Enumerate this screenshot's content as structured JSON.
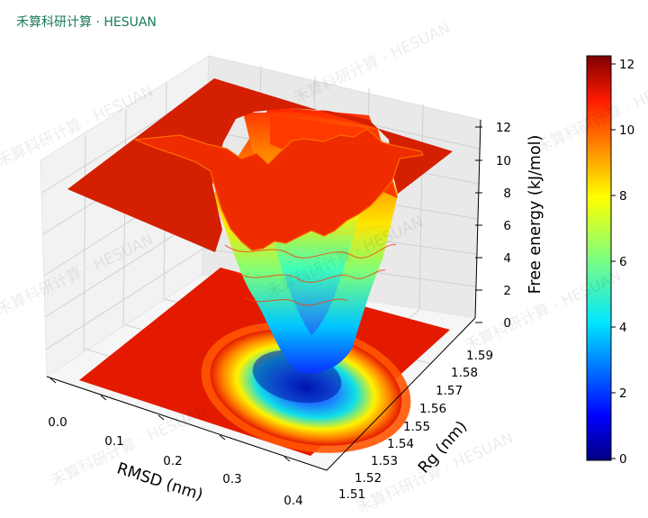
{
  "brand": {
    "text": "禾算科研计算 · HESUAN",
    "color": "#1a7a55"
  },
  "watermark": {
    "text": "禾算科研计算 · HESUAN"
  },
  "chart_data": {
    "type": "surface3d",
    "x": {
      "label": "RMSD (nm)",
      "ticks": [
        "0.0",
        "0.1",
        "0.2",
        "0.3",
        "0.4"
      ],
      "range": [
        0.0,
        0.4
      ]
    },
    "y": {
      "label": "Rg (nm)",
      "ticks": [
        "1.51",
        "1.52",
        "1.53",
        "1.54",
        "1.55",
        "1.56",
        "1.57",
        "1.58",
        "1.59"
      ],
      "range": [
        1.51,
        1.59
      ]
    },
    "z": {
      "label": "Free energy (kJ/mol)",
      "ticks": [
        "0",
        "2",
        "4",
        "6",
        "8",
        "10",
        "12"
      ],
      "range": [
        0,
        12
      ]
    },
    "colorbar": {
      "ticks": [
        "0",
        "2",
        "4",
        "6",
        "8",
        "10",
        "12"
      ],
      "range": [
        0,
        12.3
      ],
      "colormap": "jet"
    },
    "surface": {
      "plateau_value": 12.3,
      "basin_min": 0.0,
      "basin_center": {
        "rmsd": 0.2,
        "rg": 1.55
      },
      "contour_projection": "bottom"
    },
    "grid": true
  }
}
